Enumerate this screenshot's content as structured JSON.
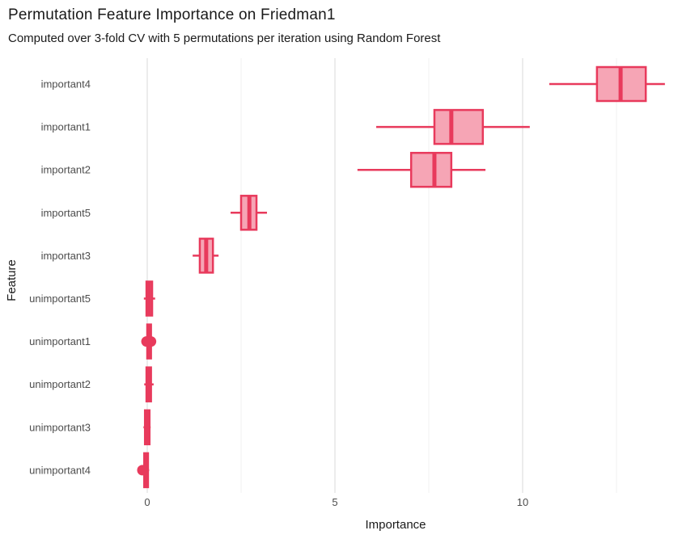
{
  "chart_data": {
    "type": "boxplot",
    "orientation": "horizontal",
    "title": "Permutation Feature Importance on Friedman1",
    "subtitle": "Computed over 3-fold CV with 5 permutations per iteration using Random Forest",
    "xlabel": "Importance",
    "ylabel": "Feature",
    "x_axis": {
      "range": [
        -1.34,
        14.57
      ],
      "ticks": [
        {
          "value": 0,
          "label": "0"
        },
        {
          "value": 5,
          "label": "5"
        },
        {
          "value": 10,
          "label": "10"
        }
      ],
      "minor_gridlines": [
        2.5,
        7.5,
        12.5
      ]
    },
    "grid": "vertical-only",
    "legend": "none",
    "boxes": [
      {
        "feature": "important4",
        "whisker_low": 10.71,
        "q1": 11.98,
        "median": 12.61,
        "q3": 13.28,
        "whisker_high": 13.79,
        "outliers": []
      },
      {
        "feature": "important1",
        "whisker_low": 6.1,
        "q1": 7.65,
        "median": 8.1,
        "q3": 8.94,
        "whisker_high": 10.19,
        "outliers": []
      },
      {
        "feature": "important2",
        "whisker_low": 5.6,
        "q1": 7.03,
        "median": 7.65,
        "q3": 8.1,
        "whisker_high": 9.01,
        "outliers": []
      },
      {
        "feature": "important5",
        "whisker_low": 2.22,
        "q1": 2.5,
        "median": 2.72,
        "q3": 2.91,
        "whisker_high": 3.19,
        "outliers": []
      },
      {
        "feature": "important3",
        "whisker_low": 1.21,
        "q1": 1.4,
        "median": 1.57,
        "q3": 1.75,
        "whisker_high": 1.9,
        "outliers": []
      },
      {
        "feature": "unimportant5",
        "whisker_low": -0.09,
        "q1": -0.02,
        "median": 0.05,
        "q3": 0.13,
        "whisker_high": 0.21,
        "outliers": []
      },
      {
        "feature": "unimportant1",
        "whisker_low": -0.04,
        "q1": 0.0,
        "median": 0.05,
        "q3": 0.1,
        "whisker_high": 0.14,
        "outliers": [
          -0.02,
          0.1
        ]
      },
      {
        "feature": "unimportant2",
        "whisker_low": -0.08,
        "q1": -0.02,
        "median": 0.03,
        "q3": 0.1,
        "whisker_high": 0.17,
        "outliers": []
      },
      {
        "feature": "unimportant3",
        "whisker_low": -0.1,
        "q1": -0.06,
        "median": -0.01,
        "q3": 0.06,
        "whisker_high": 0.09,
        "outliers": []
      },
      {
        "feature": "unimportant4",
        "whisker_low": -0.11,
        "q1": -0.08,
        "median": -0.03,
        "q3": 0.02,
        "whisker_high": 0.05,
        "outliers": [
          -0.13
        ]
      }
    ],
    "colors": {
      "box_stroke": "#e83a5c",
      "box_fill": "#f6a5b5",
      "grid_major": "#e2e2e2",
      "grid_minor": "#f1f1f1",
      "tick_label": "#4d4d4d",
      "axis_title": "#1a1a1a"
    }
  }
}
